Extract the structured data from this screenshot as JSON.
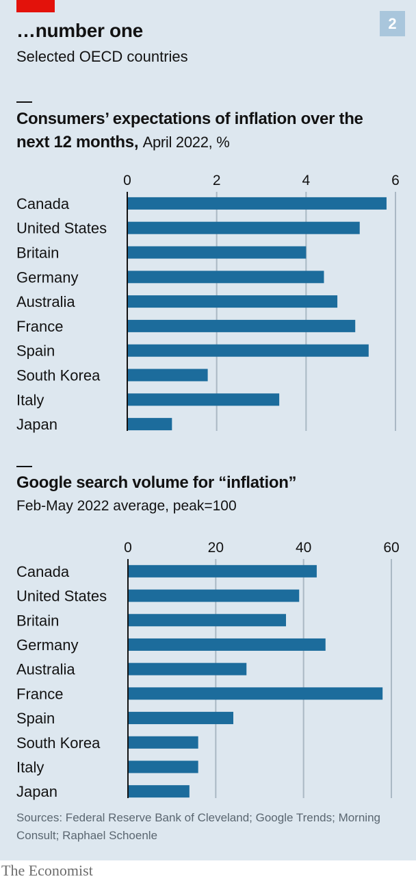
{
  "header": {
    "title": "…number one",
    "subtitle": "Selected OECD countries",
    "badge": "2"
  },
  "colors": {
    "background": "#dde7ef",
    "bar": "#1c6c9c",
    "accent_red": "#e3120b",
    "badge": "#a9c6dc"
  },
  "chart_data": [
    {
      "type": "bar",
      "orientation": "horizontal",
      "title": "Consumers’ expectations of inflation over the next 12 months,",
      "title_unit": "April 2022, %",
      "categories": [
        "Canada",
        "United States",
        "Britain",
        "Germany",
        "Australia",
        "France",
        "Spain",
        "South Korea",
        "Italy",
        "Japan"
      ],
      "values": [
        5.8,
        5.2,
        4.0,
        4.4,
        4.7,
        5.1,
        5.4,
        1.8,
        3.4,
        1.0
      ],
      "xlim": [
        0,
        6
      ],
      "ticks": [
        "0",
        "2",
        "4",
        "6"
      ],
      "tick_values": [
        0,
        2,
        4,
        6
      ],
      "grid": true
    },
    {
      "type": "bar",
      "orientation": "horizontal",
      "title": "Google search volume for “inflation”",
      "subtitle": "Feb-May 2022 average, peak=100",
      "categories": [
        "Canada",
        "United States",
        "Britain",
        "Germany",
        "Australia",
        "France",
        "Spain",
        "South Korea",
        "Italy",
        "Japan"
      ],
      "values": [
        43,
        39,
        36,
        45,
        27,
        58,
        24,
        16,
        16,
        14
      ],
      "xlim": [
        0,
        60
      ],
      "ticks": [
        "0",
        "20",
        "40",
        "60"
      ],
      "tick_values": [
        0,
        20,
        40,
        60
      ],
      "grid": true
    }
  ],
  "footer": {
    "source": "Sources: Federal Reserve Bank of Cleveland; Google Trends; Morning Consult; Raphael Schoenle",
    "brand": "The Economist"
  }
}
